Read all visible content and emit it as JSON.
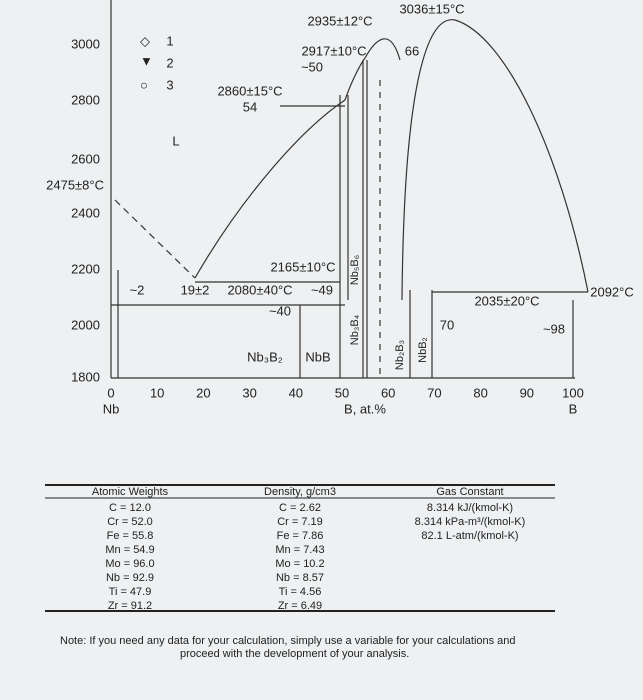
{
  "diagram": {
    "y_ticks": [
      "3000",
      "2800",
      "2600",
      "2475±8°C",
      "2400",
      "2200",
      "2000",
      "1800"
    ],
    "x_ticks": [
      "0",
      "10",
      "20",
      "30",
      "40",
      "50",
      "60",
      "70",
      "80",
      "90",
      "100"
    ],
    "x_end_labels": [
      "Nb",
      "B"
    ],
    "x_axis_label": "B, at.%",
    "legend": [
      "1",
      "2",
      "3"
    ],
    "phase_labels": [
      "L",
      "Nb₃B₂",
      "NbB",
      "Nb₃B₄",
      "Nb₅B₆",
      "Nb₂B₃",
      "NbB₂"
    ],
    "annotations": [
      "2935±12°C",
      "3036±15°C",
      "2917±10°C",
      "~50",
      "66",
      "2860±15°C",
      "54",
      "2165±10°C",
      "19±2",
      "2080±40°C",
      "~49",
      "~40",
      "~2",
      "2035±20°C",
      "70",
      "~98",
      "2092°C"
    ]
  },
  "table": {
    "columns": [
      {
        "header": "Atomic Weights",
        "rows": [
          "C = 12.0",
          "Cr = 52.0",
          "Fe = 55.8",
          "Mn = 54.9",
          "Mo = 96.0",
          "Nb = 92.9",
          "Ti = 47.9",
          "Zr = 91.2"
        ]
      },
      {
        "header": "Density, g/cm3",
        "rows": [
          "C = 2.62",
          "Cr = 7.19",
          "Fe = 7.86",
          "Mn = 7.43",
          "Mo = 10.2",
          "Nb = 8.57",
          "Ti = 4.56",
          "Zr = 6.49"
        ]
      },
      {
        "header": "Gas Constant",
        "rows": [
          "8.314 kJ/(kmol-K)",
          "8.314 kPa-m³/(kmol-K)",
          "82.1 L-atm/(kmol-K)"
        ]
      }
    ]
  },
  "note": [
    "Note: If you need any data for your calculation, simply use a variable for your calculations and",
    "proceed with the development of your analysis."
  ]
}
